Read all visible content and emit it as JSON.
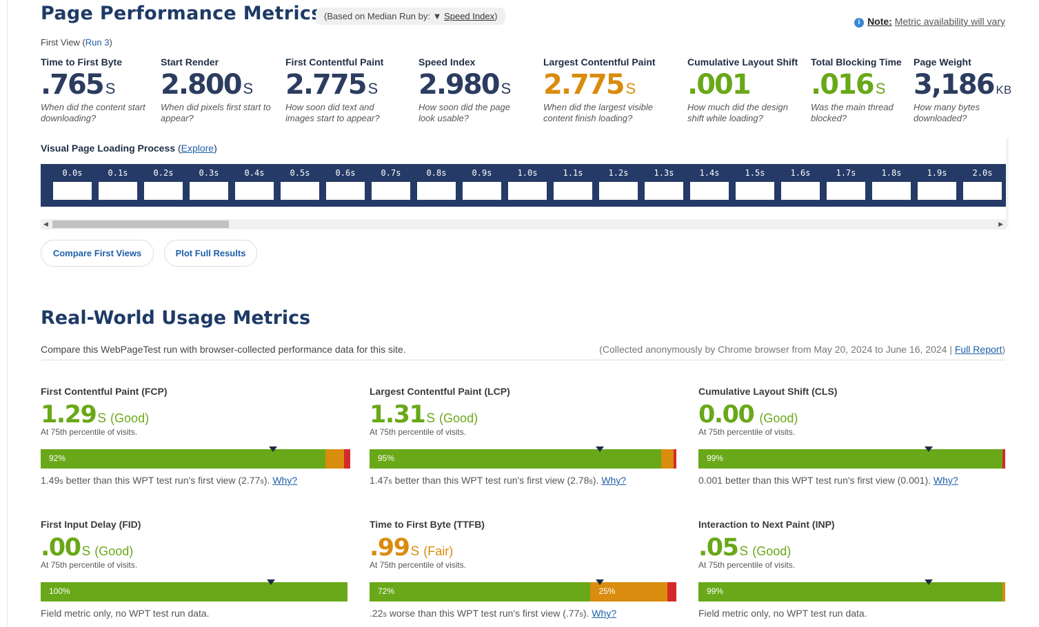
{
  "header": {
    "title": "Page Performance Metrics",
    "median_prefix": "(Based on Median Run by:",
    "median_arrow": "▼",
    "median_value": "Speed Index",
    "median_suffix": ")",
    "note_label": "Note:",
    "note_text": "Metric availability will vary",
    "first_view": "First View",
    "run_prefix": "(",
    "run_link": "Run 3",
    "run_suffix": ")"
  },
  "metrics": [
    {
      "label": "Time to First Byte",
      "value": ".765",
      "unit": "S",
      "desc": "When did the content start downloading?"
    },
    {
      "label": "Start Render",
      "value": "2.800",
      "unit": "S",
      "desc": "When did pixels first start to appear?"
    },
    {
      "label": "First Contentful Paint",
      "value": "2.775",
      "unit": "S",
      "desc": "How soon did text and images start to appear?"
    },
    {
      "label": "Speed Index",
      "value": "2.980",
      "unit": "S",
      "desc": "How soon did the page look usable?"
    },
    {
      "label": "Largest Contentful Paint",
      "value": "2.775",
      "unit": "S",
      "desc": "When did the largest visible content finish loading?"
    },
    {
      "label": "Cumulative Layout Shift",
      "value": ".001",
      "unit": "",
      "desc": "How much did the design shift while loading?"
    },
    {
      "label": "Total Blocking Time",
      "value": ".016",
      "unit": "S",
      "desc": "Was the main thread blocked?"
    },
    {
      "label": "Page Weight",
      "value": "3,186",
      "unit": "KB",
      "desc": "How many bytes downloaded?"
    }
  ],
  "visual": {
    "label": "Visual Page Loading Process",
    "explore_open": "(",
    "explore": "Explore",
    "explore_close": ")",
    "frames": [
      "0.0s",
      "0.1s",
      "0.2s",
      "0.3s",
      "0.4s",
      "0.5s",
      "0.6s",
      "0.7s",
      "0.8s",
      "0.9s",
      "1.0s",
      "1.1s",
      "1.2s",
      "1.3s",
      "1.4s",
      "1.5s",
      "1.6s",
      "1.7s",
      "1.8s",
      "1.9s",
      "2.0s"
    ],
    "scroll_left": "◀",
    "scroll_right": "▶"
  },
  "buttons": {
    "compare": "Compare First Views",
    "plot": "Plot Full Results"
  },
  "realworld": {
    "title": "Real-World Usage Metrics",
    "compare_text": "Compare this WebPageTest run with browser-collected performance data for this site.",
    "collected_text": "(Collected anonymously by Chrome browser from May 20, 2024 to June 16, 2024 | ",
    "full_report": "Full Report",
    "collected_close": ")",
    "cards": [
      {
        "label": "First Contentful Paint (FCP)",
        "value": "1.29",
        "unit": "S",
        "rating": "(Good)",
        "sub": "At 75th percentile of visits.",
        "good_pct": 92,
        "fair_pct": 6,
        "poor_pct": 2,
        "good_label": "92%",
        "fair_label": "",
        "marker_pct": 75,
        "foot_a": "1.49",
        "foot_a_unit": "s",
        "foot_b": " better than this WPT test run's first view (2.77",
        "foot_b_unit": "s",
        "foot_c": "). ",
        "why": "Why?"
      },
      {
        "label": "Largest Contentful Paint (LCP)",
        "value": "1.31",
        "unit": "S",
        "rating": "(Good)",
        "sub": "At 75th percentile of visits.",
        "good_pct": 95,
        "fair_pct": 4,
        "poor_pct": 1,
        "good_label": "95%",
        "fair_label": "",
        "marker_pct": 75,
        "foot_a": "1.47",
        "foot_a_unit": "s",
        "foot_b": " better than this WPT test run's first view (2.78",
        "foot_b_unit": "s",
        "foot_c": "). ",
        "why": "Why?"
      },
      {
        "label": "Cumulative Layout Shift (CLS)",
        "value": "0.00",
        "unit": "",
        "rating": "(Good)",
        "sub": "At 75th percentile of visits.",
        "good_pct": 99,
        "fair_pct": 0,
        "poor_pct": 1,
        "good_label": "99%",
        "fair_label": "",
        "marker_pct": 75,
        "foot_a": "0.001",
        "foot_a_unit": "",
        "foot_b": " better than this WPT test run's first view (0.001",
        "foot_b_unit": "",
        "foot_c": "). ",
        "why": "Why?"
      },
      {
        "label": "First Input Delay (FID)",
        "value": ".00",
        "unit": "S",
        "rating": "(Good)",
        "sub": "At 75th percentile of visits.",
        "good_pct": 100,
        "fair_pct": 0,
        "poor_pct": 0,
        "good_label": "100%",
        "fair_label": "",
        "marker_pct": 75,
        "foot_a": "Field metric only, no WPT test run data.",
        "foot_a_unit": "",
        "foot_b": "",
        "foot_b_unit": "",
        "foot_c": "",
        "why": ""
      },
      {
        "label": "Time to First Byte (TTFB)",
        "value": ".99",
        "unit": "S",
        "rating": "(Fair)",
        "sub": "At 75th percentile of visits.",
        "good_pct": 72,
        "fair_pct": 25,
        "poor_pct": 3,
        "good_label": "72%",
        "fair_label": "25%",
        "marker_pct": 75,
        "foot_a": ".22",
        "foot_a_unit": "s",
        "foot_b": " worse than this WPT test run's first view (.77",
        "foot_b_unit": "s",
        "foot_c": "). ",
        "why": "Why?"
      },
      {
        "label": "Interaction to Next Paint (INP)",
        "value": ".05",
        "unit": "S",
        "rating": "(Good)",
        "sub": "At 75th percentile of visits.",
        "good_pct": 99,
        "fair_pct": 1,
        "poor_pct": 0,
        "good_label": "99%",
        "fair_label": "",
        "marker_pct": 75,
        "foot_a": "Field metric only, no WPT test run data.",
        "foot_a_unit": "",
        "foot_b": "",
        "foot_b_unit": "",
        "foot_c": "",
        "why": ""
      }
    ]
  },
  "colors": {
    "navy": "#1e3a66",
    "good": "#69a818",
    "fair": "#d98c0e",
    "poor": "#d42a2a",
    "filmstrip": "#253a66",
    "link": "#1d5fa8"
  }
}
